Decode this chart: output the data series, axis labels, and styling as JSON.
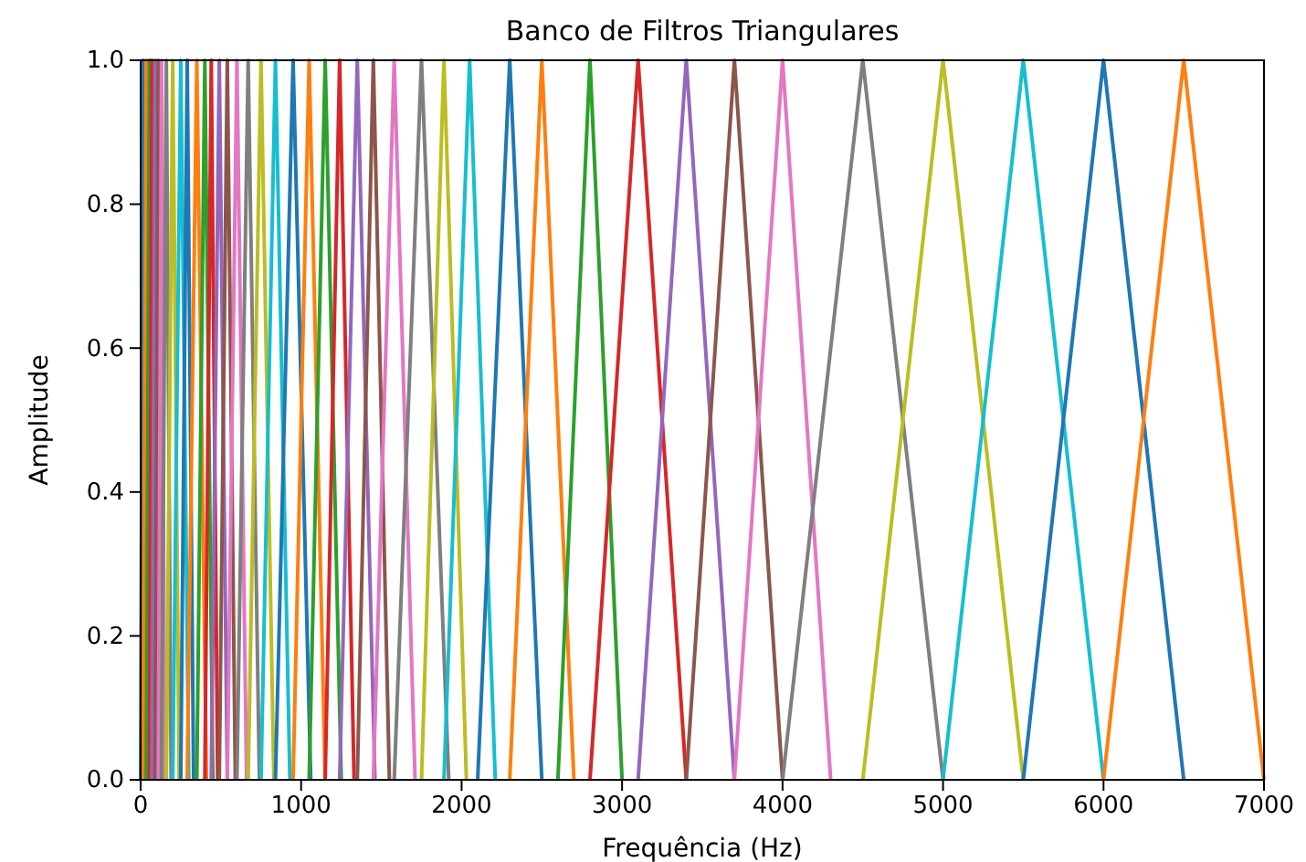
{
  "chart_data": {
    "type": "line",
    "title": "Banco de Filtros Triangulares",
    "xlabel": "Frequência (Hz)",
    "ylabel": "Amplitude",
    "xlim": [
      0,
      7000
    ],
    "xticks": [
      0,
      1000,
      2000,
      3000,
      4000,
      5000,
      6000,
      7000
    ],
    "ylim": [
      0,
      1
    ],
    "yticks": [
      {
        "value": 0,
        "label": "0.0"
      },
      {
        "value": 0.2,
        "label": "0.2"
      },
      {
        "value": 0.4,
        "label": "0.4"
      },
      {
        "value": 0.6,
        "label": "0.6"
      },
      {
        "value": 0.8,
        "label": "0.8"
      },
      {
        "value": 1,
        "label": "1.0"
      }
    ],
    "grid": false,
    "marker": "none",
    "line_style": "solid",
    "series": [
      {
        "color": "#1f77b4",
        "x": [
          0,
          15,
          30
        ],
        "values": [
          0,
          1,
          0
        ]
      },
      {
        "color": "#ff7f0e",
        "x": [
          15,
          35,
          55
        ],
        "values": [
          0,
          1,
          0
        ]
      },
      {
        "color": "#2ca02c",
        "x": [
          35,
          55,
          75
        ],
        "values": [
          0,
          1,
          0
        ]
      },
      {
        "color": "#d62728",
        "x": [
          55,
          70,
          85
        ],
        "values": [
          0,
          1,
          0
        ]
      },
      {
        "color": "#9467bd",
        "x": [
          70,
          90,
          110
        ],
        "values": [
          0,
          1,
          0
        ]
      },
      {
        "color": "#8c564b",
        "x": [
          90,
          110,
          130
        ],
        "values": [
          0,
          1,
          0
        ]
      },
      {
        "color": "#e377c2",
        "x": [
          110,
          130,
          150
        ],
        "values": [
          0,
          1,
          0
        ]
      },
      {
        "color": "#7f7f7f",
        "x": [
          130,
          160,
          190
        ],
        "values": [
          0,
          1,
          0
        ]
      },
      {
        "color": "#bcbd22",
        "x": [
          160,
          200,
          240
        ],
        "values": [
          0,
          1,
          0
        ]
      },
      {
        "color": "#17becf",
        "x": [
          200,
          250,
          300
        ],
        "values": [
          0,
          1,
          0
        ]
      },
      {
        "color": "#1f77b4",
        "x": [
          250,
          290,
          330
        ],
        "values": [
          0,
          1,
          0
        ]
      },
      {
        "color": "#ff7f0e",
        "x": [
          290,
          350,
          410
        ],
        "values": [
          0,
          1,
          0
        ]
      },
      {
        "color": "#2ca02c",
        "x": [
          350,
          400,
          450
        ],
        "values": [
          0,
          1,
          0
        ]
      },
      {
        "color": "#d62728",
        "x": [
          400,
          440,
          480
        ],
        "values": [
          0,
          1,
          0
        ]
      },
      {
        "color": "#9467bd",
        "x": [
          440,
          490,
          540
        ],
        "values": [
          0,
          1,
          0
        ]
      },
      {
        "color": "#8c564b",
        "x": [
          490,
          540,
          590
        ],
        "values": [
          0,
          1,
          0
        ]
      },
      {
        "color": "#e377c2",
        "x": [
          540,
          600,
          660
        ],
        "values": [
          0,
          1,
          0
        ]
      },
      {
        "color": "#7f7f7f",
        "x": [
          600,
          670,
          740
        ],
        "values": [
          0,
          1,
          0
        ]
      },
      {
        "color": "#bcbd22",
        "x": [
          670,
          750,
          830
        ],
        "values": [
          0,
          1,
          0
        ]
      },
      {
        "color": "#17becf",
        "x": [
          750,
          840,
          930
        ],
        "values": [
          0,
          1,
          0
        ]
      },
      {
        "color": "#1f77b4",
        "x": [
          840,
          950,
          1060
        ],
        "values": [
          0,
          1,
          0
        ]
      },
      {
        "color": "#ff7f0e",
        "x": [
          950,
          1050,
          1150
        ],
        "values": [
          0,
          1,
          0
        ]
      },
      {
        "color": "#2ca02c",
        "x": [
          1050,
          1150,
          1250
        ],
        "values": [
          0,
          1,
          0
        ]
      },
      {
        "color": "#d62728",
        "x": [
          1150,
          1240,
          1330
        ],
        "values": [
          0,
          1,
          0
        ]
      },
      {
        "color": "#9467bd",
        "x": [
          1240,
          1350,
          1460
        ],
        "values": [
          0,
          1,
          0
        ]
      },
      {
        "color": "#8c564b",
        "x": [
          1350,
          1450,
          1550
        ],
        "values": [
          0,
          1,
          0
        ]
      },
      {
        "color": "#e377c2",
        "x": [
          1450,
          1580,
          1710
        ],
        "values": [
          0,
          1,
          0
        ]
      },
      {
        "color": "#7f7f7f",
        "x": [
          1580,
          1750,
          1920
        ],
        "values": [
          0,
          1,
          0
        ]
      },
      {
        "color": "#bcbd22",
        "x": [
          1750,
          1890,
          2030
        ],
        "values": [
          0,
          1,
          0
        ]
      },
      {
        "color": "#17becf",
        "x": [
          1890,
          2050,
          2210
        ],
        "values": [
          0,
          1,
          0
        ]
      },
      {
        "color": "#1f77b4",
        "x": [
          2100,
          2300,
          2500
        ],
        "values": [
          0,
          1,
          0
        ]
      },
      {
        "color": "#ff7f0e",
        "x": [
          2300,
          2500,
          2700
        ],
        "values": [
          0,
          1,
          0
        ]
      },
      {
        "color": "#2ca02c",
        "x": [
          2600,
          2800,
          3000
        ],
        "values": [
          0,
          1,
          0
        ]
      },
      {
        "color": "#d62728",
        "x": [
          2800,
          3100,
          3400
        ],
        "values": [
          0,
          1,
          0
        ]
      },
      {
        "color": "#9467bd",
        "x": [
          3100,
          3400,
          3700
        ],
        "values": [
          0,
          1,
          0
        ]
      },
      {
        "color": "#8c564b",
        "x": [
          3400,
          3700,
          4000
        ],
        "values": [
          0,
          1,
          0
        ]
      },
      {
        "color": "#e377c2",
        "x": [
          3700,
          4000,
          4300
        ],
        "values": [
          0,
          1,
          0
        ]
      },
      {
        "color": "#7f7f7f",
        "x": [
          4000,
          4500,
          5000
        ],
        "values": [
          0,
          1,
          0
        ]
      },
      {
        "color": "#bcbd22",
        "x": [
          4500,
          5000,
          5500
        ],
        "values": [
          0,
          1,
          0
        ]
      },
      {
        "color": "#17becf",
        "x": [
          5000,
          5500,
          6000
        ],
        "values": [
          0,
          1,
          0
        ]
      },
      {
        "color": "#1f77b4",
        "x": [
          5500,
          6000,
          6500
        ],
        "values": [
          0,
          1,
          0
        ]
      },
      {
        "color": "#ff7f0e",
        "x": [
          6000,
          6500,
          7000
        ],
        "values": [
          0,
          1,
          0
        ]
      }
    ]
  }
}
